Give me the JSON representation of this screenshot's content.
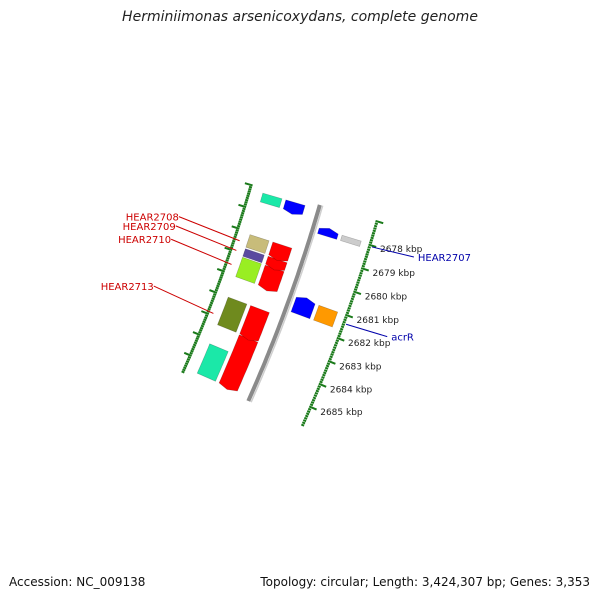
{
  "title": "Herminiimonas arsenicoxydans, complete genome",
  "footer": {
    "accession": "Accession: NC_009138",
    "summary": "Topology: circular; Length: 3,424,307 bp; Genes: 3,353"
  },
  "colors": {
    "backbone": "#8a8a8a",
    "ruler_tick": "#1a7a1a",
    "locus_red": "#cc0000",
    "locus_blue": "#0000aa"
  },
  "ruler": {
    "labels": [
      {
        "kbp": 2685,
        "text": "2685 kbp"
      },
      {
        "kbp": 2684,
        "text": "2684 kbp"
      },
      {
        "kbp": 2683,
        "text": "2683 kbp"
      },
      {
        "kbp": 2682,
        "text": "2682 kbp"
      },
      {
        "kbp": 2681,
        "text": "2681 kbp"
      },
      {
        "kbp": 2680,
        "text": "2680 kbp"
      },
      {
        "kbp": 2679,
        "text": "2679 kbp"
      },
      {
        "kbp": 2678,
        "text": "2678 kbp"
      }
    ]
  },
  "features": [
    {
      "track": "outer-rna",
      "start_kbp": 2684.2,
      "end_kbp": 2685.6,
      "color": "#1be8a8"
    },
    {
      "track": "outer-cds",
      "start_kbp": 2683.35,
      "end_kbp": 2685.6,
      "color": "#ff0000",
      "strand": "+"
    },
    {
      "track": "outer-cds",
      "start_kbp": 2682.0,
      "end_kbp": 2683.3,
      "color": "#ff0000",
      "strand": "+"
    },
    {
      "track": "outer-cog",
      "start_kbp": 2682.0,
      "end_kbp": 2683.3,
      "color": "#6f8a1e"
    },
    {
      "track": "inner-cds",
      "start_kbp": 2681.0,
      "end_kbp": 2681.65,
      "color": "#0000ff",
      "strand": "-"
    },
    {
      "track": "inner-cog",
      "start_kbp": 2681.0,
      "end_kbp": 2681.65,
      "color": "#ff9900"
    },
    {
      "track": "outer-cds",
      "start_kbp": 2680.15,
      "end_kbp": 2681.05,
      "color": "#ff0000",
      "strand": "+"
    },
    {
      "track": "outer-cog",
      "start_kbp": 2680.15,
      "end_kbp": 2681.05,
      "color": "#99ee22"
    },
    {
      "track": "outer-cds",
      "start_kbp": 2679.75,
      "end_kbp": 2680.1,
      "color": "#ff0000",
      "strand": "+"
    },
    {
      "track": "outer-cog",
      "start_kbp": 2679.75,
      "end_kbp": 2680.1,
      "color": "#5a4aa0"
    },
    {
      "track": "outer-cds",
      "start_kbp": 2679.1,
      "end_kbp": 2679.68,
      "color": "#ff0000",
      "strand": "+"
    },
    {
      "track": "outer-cog",
      "start_kbp": 2679.1,
      "end_kbp": 2679.68,
      "color": "#c8bc7a"
    },
    {
      "track": "inner-cds",
      "start_kbp": 2677.95,
      "end_kbp": 2678.18,
      "color": "#0000ff",
      "strand": "-"
    },
    {
      "track": "inner-cog",
      "start_kbp": 2677.95,
      "end_kbp": 2678.18,
      "color": "#cccccc"
    },
    {
      "track": "outer-cds",
      "start_kbp": 2677.2,
      "end_kbp": 2677.6,
      "color": "#0000ff",
      "strand": "+"
    },
    {
      "track": "outer-rna",
      "start_kbp": 2677.2,
      "end_kbp": 2677.6,
      "color": "#1be8a8"
    }
  ],
  "gene_labels": [
    {
      "text": "HEAR2713",
      "kbp": 2682.9,
      "side": "left",
      "color": "#cc0000"
    },
    {
      "text": "HEAR2710",
      "kbp": 2680.6,
      "side": "left",
      "color": "#cc0000"
    },
    {
      "text": "HEAR2709",
      "kbp": 2679.95,
      "side": "left",
      "color": "#cc0000"
    },
    {
      "text": "HEAR2708",
      "kbp": 2679.5,
      "side": "left",
      "color": "#cc0000"
    },
    {
      "text": "acrR",
      "kbp": 2681.35,
      "side": "right",
      "color": "#0000aa"
    },
    {
      "text": "HEAR2707",
      "kbp": 2678.05,
      "side": "right",
      "color": "#0000aa"
    }
  ]
}
